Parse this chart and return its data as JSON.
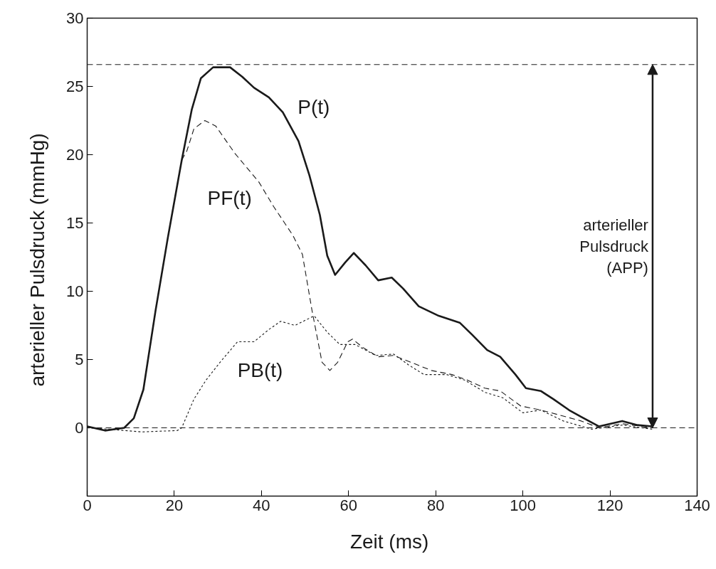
{
  "chart_data": {
    "type": "line",
    "xlabel": "Zeit  (ms)",
    "ylabel": "arterieller Pulsdruck  (mmHg)",
    "xlim": [
      0,
      140
    ],
    "xticks": [
      0,
      20,
      40,
      60,
      80,
      100,
      120,
      140
    ],
    "ylim": [
      -5,
      30
    ],
    "yticks": [
      0,
      5,
      10,
      15,
      20,
      25,
      30
    ],
    "grid": false,
    "marker": "none",
    "series": [
      {
        "name": "P(t)",
        "color": "#1a1a1a",
        "line_style": "solid",
        "x": [
          0,
          4.1,
          8.5,
          10.7,
          12.9,
          15.7,
          18.5,
          21.7,
          24.0,
          26.1,
          28.9,
          32.8,
          35.6,
          38.3,
          41.7,
          44.9,
          48.5,
          51.0,
          53.4,
          55.1,
          56.9,
          59.2,
          61.2,
          63.9,
          66.8,
          69.9,
          72.5,
          76.1,
          80.7,
          85.5,
          88.4,
          91.8,
          94.8,
          98.3,
          100.7,
          104.1,
          107.0,
          110.6,
          113.4,
          117.5,
          122.8,
          126.3,
          129.7
        ],
        "values": [
          0.1,
          -0.2,
          0,
          0.7,
          2.8,
          8.6,
          13.9,
          19.6,
          23.3,
          25.6,
          26.4,
          26.4,
          25.7,
          24.9,
          24.2,
          23.1,
          21.0,
          18.5,
          15.6,
          12.6,
          11.2,
          12.1,
          12.8,
          11.9,
          10.8,
          11.0,
          10.2,
          8.9,
          8.2,
          7.7,
          6.8,
          5.7,
          5.2,
          3.9,
          2.9,
          2.7,
          2.1,
          1.3,
          0.8,
          0.1,
          0.5,
          0.2,
          0.1
        ]
      },
      {
        "name": "PF(t)",
        "color": "#1a1a1a",
        "line_style": "dashed",
        "x": [
          0,
          4.1,
          8.5,
          10.7,
          12.9,
          15.7,
          18.5,
          21.7,
          22.9,
          24.5,
          27.0,
          29.5,
          33.9,
          39.4,
          42.8,
          47.2,
          49.4,
          51.6,
          53.9,
          55.7,
          57.5,
          59.8,
          60.9,
          63.2,
          66.8,
          70.3,
          74.3,
          79.0,
          83.7,
          87.2,
          91.3,
          94.8,
          99.5,
          104.1,
          108.8,
          113.4,
          117.5,
          122.8,
          129.7
        ],
        "values": [
          0.1,
          -0.2,
          0,
          0.7,
          2.8,
          8.6,
          13.9,
          19.6,
          20.3,
          21.9,
          22.5,
          22.1,
          20.1,
          18.0,
          16.2,
          14.1,
          12.7,
          8.6,
          4.8,
          4.2,
          4.8,
          6.3,
          6.5,
          5.9,
          5.2,
          5.3,
          4.8,
          4.2,
          3.9,
          3.5,
          2.9,
          2.7,
          1.6,
          1.3,
          0.9,
          0.5,
          0.0,
          0.3,
          0.0
        ]
      },
      {
        "name": "PB(t)",
        "color": "#1a1a1a",
        "line_style": "dotted",
        "x": [
          0,
          5,
          12.4,
          20.7,
          21.7,
          24.5,
          27.3,
          30.5,
          34.5,
          38.3,
          41.7,
          44.4,
          47.7,
          52.1,
          55.1,
          58.0,
          61.5,
          66.2,
          70.3,
          73.8,
          77.3,
          82.5,
          86.6,
          91.3,
          95.4,
          100.0,
          104.1,
          109.3,
          115.8,
          122.8,
          129.7
        ],
        "values": [
          0,
          -0.1,
          -0.3,
          -0.2,
          0,
          2.1,
          3.5,
          4.8,
          6.3,
          6.3,
          7.2,
          7.8,
          7.5,
          8.2,
          7.0,
          6.1,
          6.1,
          5.3,
          5.4,
          4.6,
          3.9,
          3.9,
          3.5,
          2.6,
          2.2,
          1.1,
          1.3,
          0.5,
          -0.1,
          0.2,
          -0.1
        ]
      }
    ],
    "ref_lines": [
      {
        "axis": "y",
        "value": 26.6,
        "color": "#1a1a1a",
        "line_style": "dashed"
      },
      {
        "axis": "y",
        "value": 0,
        "color": "#1a1a1a",
        "line_style": "dashed"
      }
    ],
    "annotations": [
      "arterieller\nPulsdruck\n(APP)"
    ]
  }
}
